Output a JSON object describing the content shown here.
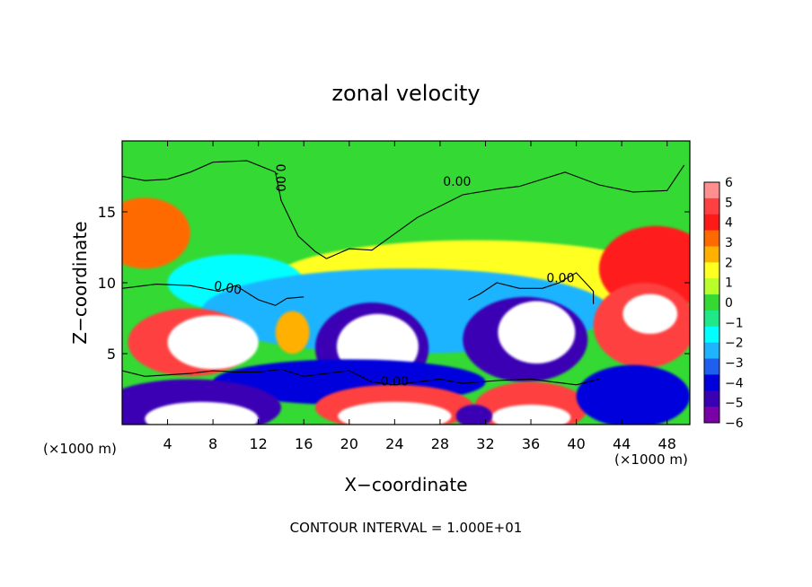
{
  "chart_data": {
    "type": "heatmap",
    "title": "zonal velocity",
    "xlabel": "X−coordinate",
    "ylabel": "Z−coordinate",
    "x_unit_left": "(×1000 m)",
    "x_unit_right": "(×1000 m)",
    "footer": "CONTOUR INTERVAL = 1.000E+01",
    "xlim": [
      0,
      50
    ],
    "ylim": [
      0,
      20
    ],
    "x_ticks": [
      4,
      8,
      12,
      16,
      20,
      24,
      28,
      32,
      36,
      40,
      44,
      48
    ],
    "y_ticks": [
      5,
      10,
      15
    ],
    "colorbar": {
      "ticks": [
        6,
        5,
        4,
        3,
        2,
        1,
        0,
        -1,
        -2,
        -3,
        -4,
        -5,
        -6
      ],
      "colors": [
        "#ff8f8f",
        "#ff4040",
        "#ff1a1a",
        "#ff6a00",
        "#ffb000",
        "#ffff20",
        "#b8ff2a",
        "#34d934",
        "#1fe889",
        "#00ffff",
        "#1eb4ff",
        "#1f5ff0",
        "#0000dc",
        "#3a00b4",
        "#7a00a8"
      ]
    },
    "contour_labels": [
      {
        "text": "0.00",
        "x": 29.5,
        "y": 17.1,
        "angle": 0
      },
      {
        "text": "0.00",
        "x": 13.9,
        "y": 17.4,
        "angle": 90
      },
      {
        "text": "0.00",
        "x": 9.3,
        "y": 9.6,
        "angle": 10
      },
      {
        "text": "0.00",
        "x": 38.6,
        "y": 10.3,
        "angle": 0
      },
      {
        "text": "0.00",
        "x": 24.0,
        "y": 3.0,
        "angle": 0
      }
    ],
    "blobs": [
      {
        "x": 31,
        "y": 10,
        "rx": 18,
        "ry": 3,
        "value": 2
      },
      {
        "x": 2,
        "y": 13.5,
        "rx": 4,
        "ry": 2.5,
        "value": 3.5
      },
      {
        "x": 47,
        "y": 11,
        "rx": 5,
        "ry": 3,
        "value": 4
      },
      {
        "x": 10,
        "y": 10,
        "rx": 6,
        "ry": 2,
        "value": -1.5
      },
      {
        "x": 25,
        "y": 8,
        "rx": 18,
        "ry": 3,
        "value": -2.2
      },
      {
        "x": 6,
        "y": 5.8,
        "rx": 5.5,
        "ry": 2.4,
        "value": 5
      },
      {
        "x": 8,
        "y": 5.8,
        "rx": 4,
        "ry": 1.9,
        "value": 8
      },
      {
        "x": 22,
        "y": 5.4,
        "rx": 5,
        "ry": 3.2,
        "value": -5
      },
      {
        "x": 22.5,
        "y": 5.5,
        "rx": 3.6,
        "ry": 2.3,
        "value": -8
      },
      {
        "x": 35.5,
        "y": 6,
        "rx": 5.5,
        "ry": 3,
        "value": -5
      },
      {
        "x": 36.5,
        "y": 6.5,
        "rx": 3.4,
        "ry": 2.2,
        "value": -8
      },
      {
        "x": 46,
        "y": 7,
        "rx": 4.5,
        "ry": 3,
        "value": 5
      },
      {
        "x": 46.5,
        "y": 7.8,
        "rx": 2.4,
        "ry": 1.4,
        "value": 8
      },
      {
        "x": 15,
        "y": 6.5,
        "rx": 1.5,
        "ry": 1.5,
        "value": 3
      },
      {
        "x": 20,
        "y": 3,
        "rx": 12,
        "ry": 1.6,
        "value": -4
      },
      {
        "x": 6,
        "y": 1.2,
        "rx": 8,
        "ry": 2,
        "value": -5
      },
      {
        "x": 7,
        "y": 0.4,
        "rx": 5,
        "ry": 1.2,
        "value": 8
      },
      {
        "x": 24,
        "y": 1.2,
        "rx": 7,
        "ry": 1.6,
        "value": 5
      },
      {
        "x": 24,
        "y": 0.6,
        "rx": 5,
        "ry": 1.0,
        "value": 8
      },
      {
        "x": 36,
        "y": 1.2,
        "rx": 5,
        "ry": 1.8,
        "value": 5
      },
      {
        "x": 36,
        "y": 0.5,
        "rx": 3.5,
        "ry": 0.9,
        "value": 8
      },
      {
        "x": 45,
        "y": 2,
        "rx": 5,
        "ry": 2.2,
        "value": -4
      },
      {
        "x": 31,
        "y": 0.6,
        "rx": 1.6,
        "ry": 0.8,
        "value": -5
      }
    ],
    "contours": [
      {
        "x": [
          0,
          2,
          4,
          6,
          8,
          11,
          13.5,
          14,
          15.5,
          17,
          18,
          20,
          22,
          26,
          30,
          33,
          35,
          39,
          42,
          45,
          48,
          49.5
        ],
        "y": [
          17.5,
          17.2,
          17.3,
          17.8,
          18.5,
          18.6,
          17.8,
          15.8,
          13.3,
          12.2,
          11.7,
          12.4,
          12.3,
          14.6,
          16.2,
          16.6,
          16.8,
          17.8,
          16.9,
          16.4,
          16.5,
          18.3
        ]
      },
      {
        "x": [
          0,
          3,
          6,
          8.5,
          10,
          12,
          13.5,
          14.5,
          16
        ],
        "y": [
          9.6,
          9.9,
          9.8,
          9.4,
          9.8,
          8.8,
          8.4,
          8.9,
          9.0
        ]
      },
      {
        "x": [
          30.5,
          31.5,
          33,
          35,
          37,
          38.5,
          40,
          41.5,
          41.5
        ],
        "y": [
          8.8,
          9.2,
          10.0,
          9.6,
          9.6,
          10.0,
          10.7,
          9.4,
          8.5
        ]
      },
      {
        "x": [
          0,
          2,
          4,
          6,
          8,
          10,
          12,
          14,
          16,
          18,
          20,
          22,
          24,
          26,
          28,
          30,
          33,
          36,
          40,
          42
        ],
        "y": [
          3.8,
          3.4,
          3.5,
          3.6,
          3.8,
          3.7,
          3.7,
          3.9,
          3.4,
          3.6,
          3.8,
          3.0,
          2.8,
          3.0,
          3.2,
          2.9,
          3.1,
          3.2,
          2.8,
          3.2
        ]
      }
    ]
  }
}
